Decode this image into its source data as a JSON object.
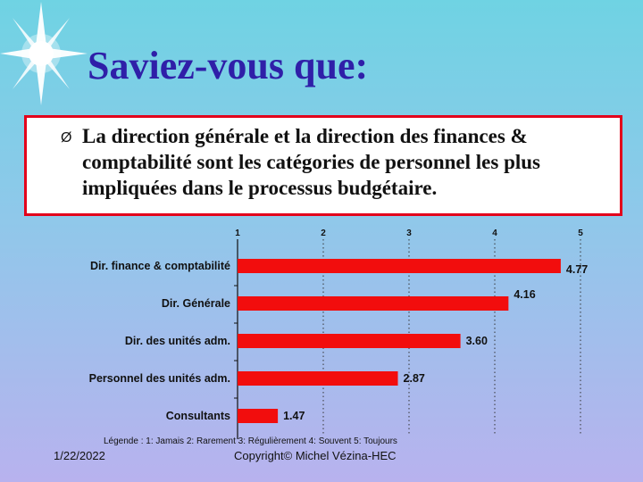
{
  "slide": {
    "title": "Saviez-vous que:",
    "bullet_glyph": "Ø",
    "callout_text": "La direction générale et la direction des finances & comptabilité sont les catégories de personnel les plus impliquées dans le processus budgétaire.",
    "footer_date": "1/22/2022",
    "footer_copyright": "Copyright© Michel Vézina-HEC"
  },
  "colors": {
    "bar": "#f20d0d",
    "title": "#2f1fa8",
    "callout_border": "#e3001b"
  },
  "chart_data": {
    "type": "bar",
    "orientation": "horizontal",
    "categories": [
      "Dir. finance & comptabilité",
      "Dir. Générale",
      "Dir. des unités adm.",
      "Personnel des unités adm.",
      "Consultants"
    ],
    "values": [
      4.77,
      4.16,
      3.6,
      2.87,
      1.47
    ],
    "value_labels": [
      "4.77",
      "4.16",
      "3.60",
      "2.87",
      "1.47"
    ],
    "xlim": [
      1,
      5
    ],
    "x_ticks": [
      "1",
      "2",
      "3",
      "4",
      "5"
    ],
    "x_tick_position": "top",
    "legend": "Légende : 1: Jamais   2: Rarement   3: Régulièrement   4: Souvent   5: Toujours",
    "grid": "vertical"
  }
}
